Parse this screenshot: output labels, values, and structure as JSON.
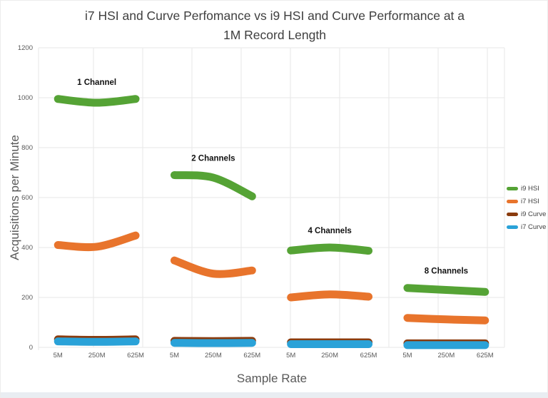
{
  "title": {
    "line1": "i7 HSI and Curve Perfomance vs i9 HSI and Curve Performance at a",
    "line2": "1M Record Length"
  },
  "chart_data": {
    "type": "line",
    "title": "i7 HSI and Curve Perfomance vs i9 HSI and Curve Performance at a 1M Record Length",
    "xlabel": "Sample Rate",
    "ylabel": "Acquisitions per Minute",
    "ylim": [
      0,
      1200
    ],
    "y_ticks": [
      0,
      200,
      400,
      600,
      800,
      1000,
      1200
    ],
    "grid": true,
    "legend_position": "right",
    "groups": [
      {
        "label": "1 Channel",
        "x_labels": [
          "5M",
          "250M",
          "625M"
        ]
      },
      {
        "label": "2 Channels",
        "x_labels": [
          "5M",
          "250M",
          "625M"
        ]
      },
      {
        "label": "4 Channels",
        "x_labels": [
          "5M",
          "250M",
          "625M"
        ]
      },
      {
        "label": "8 Channels",
        "x_labels": [
          "5M",
          "250M",
          "625M"
        ]
      }
    ],
    "series": [
      {
        "name": "i9 HSI",
        "color": "#55a335",
        "values_by_group": [
          [
            995,
            980,
            995
          ],
          [
            690,
            680,
            605
          ],
          [
            388,
            400,
            387
          ],
          [
            238,
            230,
            222
          ]
        ]
      },
      {
        "name": "i7 HSI",
        "color": "#e8742c",
        "values_by_group": [
          [
            410,
            403,
            448
          ],
          [
            348,
            295,
            308
          ],
          [
            200,
            212,
            203
          ],
          [
            118,
            112,
            108
          ]
        ]
      },
      {
        "name": "i9 Curve",
        "color": "#8a3b0d",
        "values_by_group": [
          [
            32,
            30,
            32
          ],
          [
            26,
            25,
            26
          ],
          [
            20,
            20,
            20
          ],
          [
            16,
            16,
            16
          ]
        ]
      },
      {
        "name": "i7 Curve",
        "color": "#2aa2d8",
        "values_by_group": [
          [
            24,
            22,
            24
          ],
          [
            18,
            17,
            18
          ],
          [
            13,
            13,
            13
          ],
          [
            9,
            9,
            9
          ]
        ]
      }
    ],
    "colors": {
      "grid": "#e7e7e7",
      "tick_text": "#595959",
      "annotation_text": "#111111"
    }
  }
}
